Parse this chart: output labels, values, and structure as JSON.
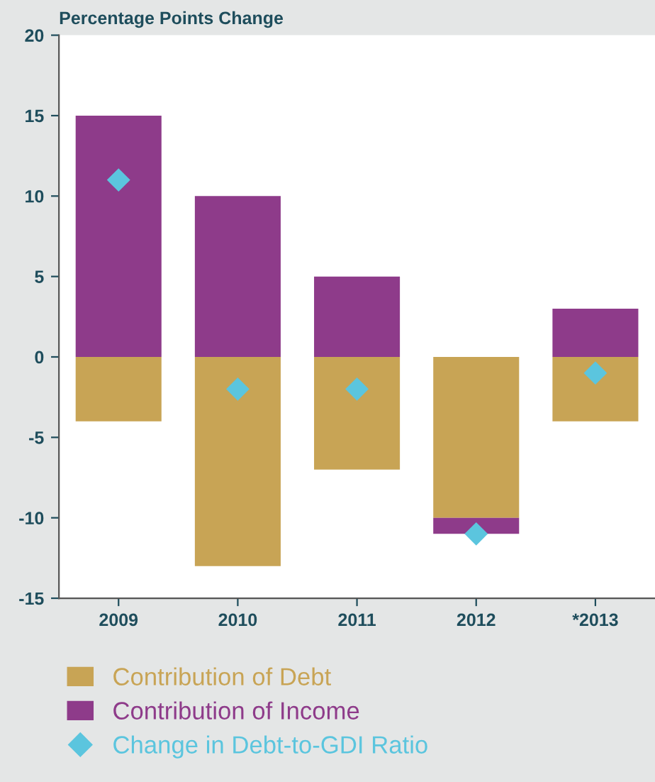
{
  "chart_data": {
    "type": "bar",
    "title": "Percentage Points Change",
    "categories": [
      "2009",
      "2010",
      "2011",
      "2012",
      "*2013"
    ],
    "stacked": true,
    "series": [
      {
        "name": "Contribution of Debt",
        "color": "#c8a455",
        "values": [
          -4,
          -13,
          -7,
          -10,
          -4
        ]
      },
      {
        "name": "Contribution of Income",
        "color": "#8e3b8a",
        "values": [
          15,
          10,
          5,
          -1,
          3
        ]
      },
      {
        "name": "Change in Debt-to-GDI Ratio",
        "color": "#5bc5de",
        "type": "scatter",
        "marker": "diamond",
        "values": [
          11,
          -2,
          -2,
          -11,
          -1
        ]
      }
    ],
    "ylim": [
      -15,
      20
    ],
    "yticks": [
      -15,
      -10,
      -5,
      0,
      5,
      10,
      15,
      20
    ],
    "grid": false,
    "legend": "bottom"
  }
}
